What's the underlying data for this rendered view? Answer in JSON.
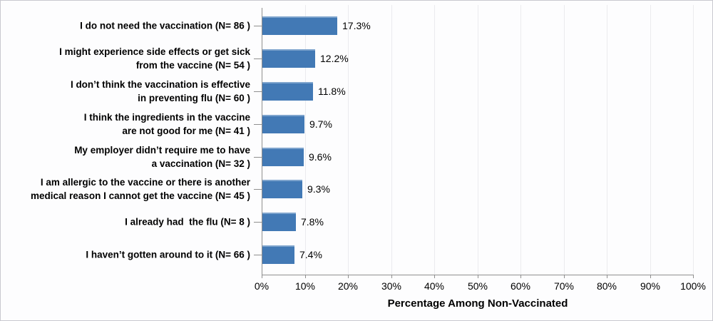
{
  "chart_data": {
    "type": "bar",
    "orientation": "horizontal",
    "xlabel": "Percentage Among Non-Vaccinated",
    "xlim": [
      0,
      100
    ],
    "x_tick_labels": [
      "0%",
      "10%",
      "20%",
      "30%",
      "40%",
      "50%",
      "60%",
      "70%",
      "80%",
      "90%",
      "100%"
    ],
    "grid": "vertical",
    "legend": "none",
    "bar_color": "#4279b5",
    "bar_highlight_color": "#7ea4cd",
    "rows": [
      {
        "label_lines": [
          "I do not need the vaccination (N= 86 )"
        ],
        "category": "I do not need the vaccination",
        "n": 86,
        "value": 17.3,
        "value_label": "17.3%"
      },
      {
        "label_lines": [
          "I might experience side effects or get sick",
          "from the vaccine (N= 54 )"
        ],
        "category": "I might experience side effects or get sick from the vaccine",
        "n": 54,
        "value": 12.2,
        "value_label": "12.2%"
      },
      {
        "label_lines": [
          "I don’t think the vaccination is effective",
          "in preventing flu (N= 60 )"
        ],
        "category": "I don’t think the vaccination is effective in preventing flu",
        "n": 60,
        "value": 11.8,
        "value_label": "11.8%"
      },
      {
        "label_lines": [
          "I think the ingredients in the vaccine",
          "are not good for me (N= 41 )"
        ],
        "category": "I think the ingredients in the vaccine are not good for me",
        "n": 41,
        "value": 9.7,
        "value_label": "9.7%"
      },
      {
        "label_lines": [
          "My employer didn’t require me to have",
          "a vaccination (N= 32 )"
        ],
        "category": "My employer didn’t require me to have a vaccination",
        "n": 32,
        "value": 9.6,
        "value_label": "9.6%"
      },
      {
        "label_lines": [
          "I am allergic to the vaccine or there is another",
          "medical reason I cannot get the vaccine (N= 45 )"
        ],
        "category": "I am allergic to the vaccine or there is another medical reason I cannot get the vaccine",
        "n": 45,
        "value": 9.3,
        "value_label": "9.3%"
      },
      {
        "label_lines": [
          "I already had  the flu (N= 8 )"
        ],
        "category": "I already had the flu",
        "n": 8,
        "value": 7.8,
        "value_label": "7.8%"
      },
      {
        "label_lines": [
          "I haven’t gotten around to it (N= 66 )"
        ],
        "category": "I haven’t gotten around to it",
        "n": 66,
        "value": 7.4,
        "value_label": "7.4%"
      }
    ]
  }
}
